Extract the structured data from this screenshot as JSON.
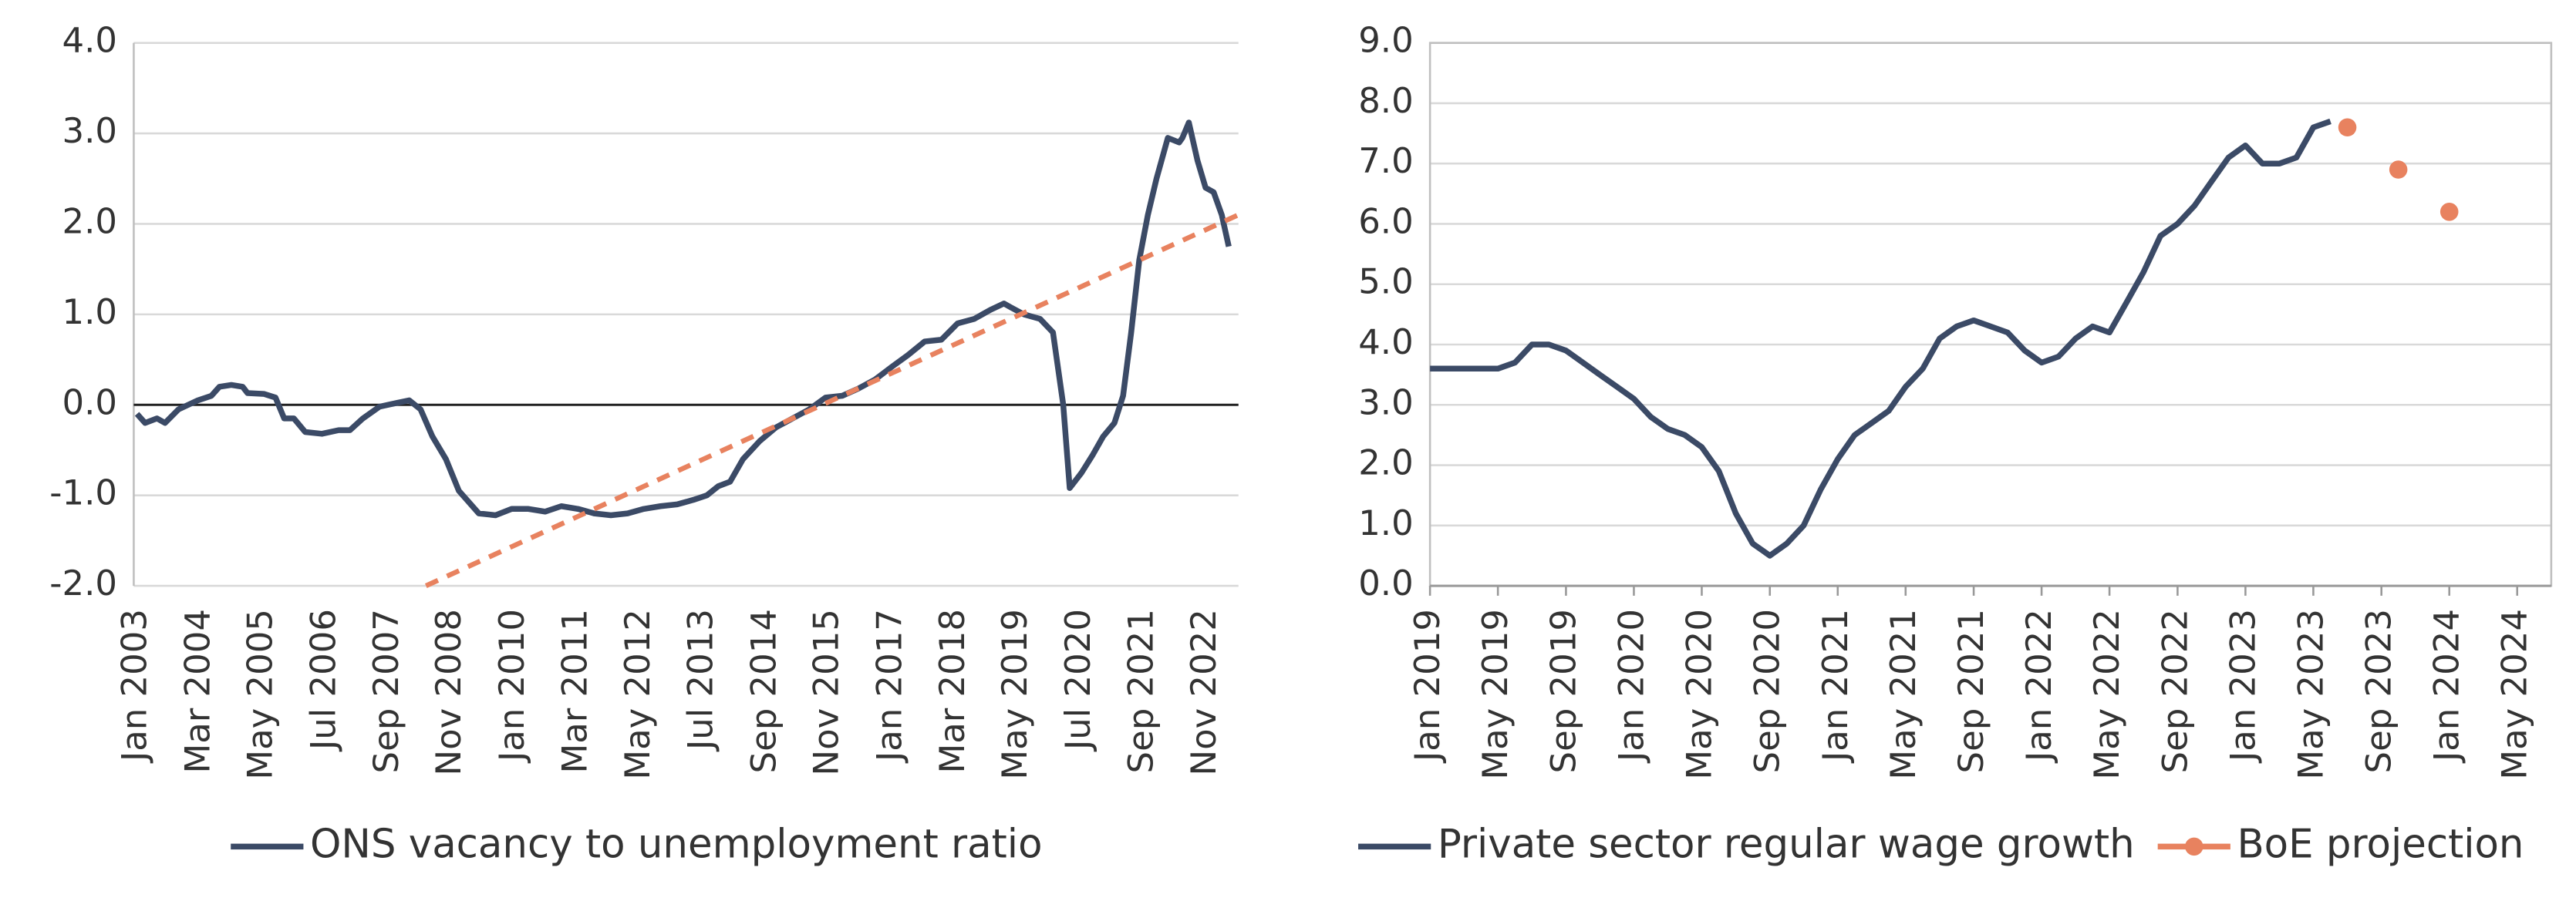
{
  "chart_data": [
    {
      "type": "line",
      "xlim": [
        2002.94,
        2023.43
      ],
      "xticks": [
        {
          "value": 2003,
          "label": "Jan 2003"
        },
        {
          "value": 2004.17,
          "label": "Mar 2004"
        },
        {
          "value": 2005.33,
          "label": "May 2005"
        },
        {
          "value": 2006.5,
          "label": "Jul 2006"
        },
        {
          "value": 2007.67,
          "label": "Sep 2007"
        },
        {
          "value": 2008.83,
          "label": "Nov 2008"
        },
        {
          "value": 2010,
          "label": "Jan 2010"
        },
        {
          "value": 2011.17,
          "label": "Mar 2011"
        },
        {
          "value": 2012.33,
          "label": "May 2012"
        },
        {
          "value": 2013.5,
          "label": "Jul 2013"
        },
        {
          "value": 2014.67,
          "label": "Sep 2014"
        },
        {
          "value": 2015.83,
          "label": "Nov 2015"
        },
        {
          "value": 2017,
          "label": "Jan 2017"
        },
        {
          "value": 2018.17,
          "label": "Mar 2018"
        },
        {
          "value": 2019.33,
          "label": "May 2019"
        },
        {
          "value": 2020.5,
          "label": "Jul 2020"
        },
        {
          "value": 2021.67,
          "label": "Sep 2021"
        },
        {
          "value": 2022.83,
          "label": "Nov 2022"
        }
      ],
      "ylim": [
        -2.0,
        4.0
      ],
      "yticks": [
        {
          "value": -2,
          "label": "-2.0"
        },
        {
          "value": -1,
          "label": "-1.0"
        },
        {
          "value": 0,
          "label": "0.0"
        },
        {
          "value": 1,
          "label": "1.0"
        },
        {
          "value": 2,
          "label": "2.0"
        },
        {
          "value": 3,
          "label": "3.0"
        },
        {
          "value": 4,
          "label": "4.0"
        }
      ],
      "grid": true,
      "zero_line": true,
      "frame": false,
      "series": [
        {
          "name": "ONS vacancy to unemployment ratio",
          "color": "#3b4a66",
          "x": [
            2003.0,
            2003.15,
            2003.37,
            2003.52,
            2003.77,
            2004.13,
            2004.38,
            2004.53,
            2004.75,
            2004.96,
            2005.05,
            2005.36,
            2005.57,
            2005.73,
            2005.91,
            2006.12,
            2006.43,
            2006.74,
            2006.95,
            2007.19,
            2007.5,
            2007.81,
            2008.05,
            2008.26,
            2008.48,
            2008.73,
            2008.97,
            2009.34,
            2009.65,
            2009.95,
            2010.26,
            2010.57,
            2010.87,
            2011.18,
            2011.48,
            2011.79,
            2012.1,
            2012.4,
            2012.71,
            2013.02,
            2013.32,
            2013.57,
            2013.78,
            2014.0,
            2014.24,
            2014.55,
            2014.85,
            2015.16,
            2015.47,
            2015.77,
            2016.08,
            2016.38,
            2016.69,
            2017.0,
            2017.3,
            2017.61,
            2017.92,
            2018.22,
            2018.53,
            2018.83,
            2019.08,
            2019.2,
            2019.45,
            2019.75,
            2019.99,
            2020.18,
            2020.3,
            2020.52,
            2020.73,
            2020.92,
            2021.13,
            2021.29,
            2021.44,
            2021.59,
            2021.75,
            2021.91,
            2022.12,
            2022.33,
            2022.39,
            2022.51,
            2022.67,
            2022.82,
            2022.97,
            2023.12,
            2023.25
          ],
          "values": [
            -0.1,
            -0.2,
            -0.15,
            -0.2,
            -0.05,
            0.05,
            0.1,
            0.2,
            0.22,
            0.2,
            0.13,
            0.12,
            0.08,
            -0.15,
            -0.15,
            -0.3,
            -0.32,
            -0.28,
            -0.28,
            -0.15,
            -0.02,
            0.02,
            0.05,
            -0.05,
            -0.35,
            -0.6,
            -0.95,
            -1.2,
            -1.22,
            -1.15,
            -1.15,
            -1.18,
            -1.12,
            -1.15,
            -1.2,
            -1.22,
            -1.2,
            -1.15,
            -1.12,
            -1.1,
            -1.05,
            -1.0,
            -0.9,
            -0.85,
            -0.6,
            -0.4,
            -0.25,
            -0.15,
            -0.05,
            0.08,
            0.1,
            0.18,
            0.28,
            0.42,
            0.55,
            0.7,
            0.72,
            0.9,
            0.95,
            1.05,
            1.12,
            1.08,
            1.0,
            0.95,
            0.8,
            0.0,
            -0.92,
            -0.75,
            -0.55,
            -0.35,
            -0.2,
            0.1,
            0.8,
            1.6,
            2.1,
            2.5,
            2.95,
            2.9,
            2.95,
            3.12,
            2.7,
            2.4,
            2.35,
            2.1,
            1.75
          ]
        },
        {
          "color": "#e8825f",
          "dash": true,
          "x": [
            2008.36,
            2023.43
          ],
          "values": [
            -2.0,
            2.1
          ]
        }
      ]
    },
    {
      "type": "line",
      "xlim": [
        2019.0,
        2024.5
      ],
      "xticks": [
        {
          "value": 2019,
          "label": "Jan 2019"
        },
        {
          "value": 2019.333,
          "label": "May 2019"
        },
        {
          "value": 2019.667,
          "label": "Sep 2019"
        },
        {
          "value": 2020,
          "label": "Jan 2020"
        },
        {
          "value": 2020.333,
          "label": "May 2020"
        },
        {
          "value": 2020.667,
          "label": "Sep 2020"
        },
        {
          "value": 2021,
          "label": "Jan 2021"
        },
        {
          "value": 2021.333,
          "label": "May 2021"
        },
        {
          "value": 2021.667,
          "label": "Sep 2021"
        },
        {
          "value": 2022,
          "label": "Jan 2022"
        },
        {
          "value": 2022.333,
          "label": "May 2022"
        },
        {
          "value": 2022.667,
          "label": "Sep 2022"
        },
        {
          "value": 2023,
          "label": "Jan 2023"
        },
        {
          "value": 2023.333,
          "label": "May 2023"
        },
        {
          "value": 2023.667,
          "label": "Sep 2023"
        },
        {
          "value": 2024,
          "label": "Jan 2024"
        },
        {
          "value": 2024.333,
          "label": "May 2024"
        }
      ],
      "ylim": [
        0,
        9.0
      ],
      "yticks": [
        {
          "value": 0,
          "label": "0.0"
        },
        {
          "value": 1,
          "label": "1.0"
        },
        {
          "value": 2,
          "label": "2.0"
        },
        {
          "value": 3,
          "label": "3.0"
        },
        {
          "value": 4,
          "label": "4.0"
        },
        {
          "value": 5,
          "label": "5.0"
        },
        {
          "value": 6,
          "label": "6.0"
        },
        {
          "value": 7,
          "label": "7.0"
        },
        {
          "value": 8,
          "label": "8.0"
        },
        {
          "value": 9,
          "label": "9.0"
        }
      ],
      "grid": true,
      "zero_line": false,
      "frame": true,
      "series": [
        {
          "name": "Private sector regular wage growth",
          "color": "#3b4a66",
          "x": [
            2019,
            2019.083,
            2019.167,
            2019.25,
            2019.333,
            2019.417,
            2019.5,
            2019.583,
            2019.667,
            2019.75,
            2019.833,
            2019.917,
            2020,
            2020.083,
            2020.167,
            2020.25,
            2020.333,
            2020.417,
            2020.5,
            2020.583,
            2020.667,
            2020.75,
            2020.833,
            2020.917,
            2021,
            2021.083,
            2021.167,
            2021.25,
            2021.333,
            2021.417,
            2021.5,
            2021.583,
            2021.667,
            2021.75,
            2021.833,
            2021.917,
            2022,
            2022.083,
            2022.167,
            2022.25,
            2022.333,
            2022.417,
            2022.5,
            2022.583,
            2022.667,
            2022.75,
            2022.833,
            2022.917,
            2023,
            2023.083,
            2023.167,
            2023.25,
            2023.333,
            2023.417
          ],
          "values": [
            3.6,
            3.6,
            3.6,
            3.6,
            3.6,
            3.7,
            4.0,
            4.0,
            3.9,
            3.7,
            3.5,
            3.3,
            3.1,
            2.8,
            2.6,
            2.5,
            2.3,
            1.9,
            1.2,
            0.7,
            0.5,
            0.7,
            1.0,
            1.6,
            2.1,
            2.5,
            2.7,
            2.9,
            3.3,
            3.6,
            4.1,
            4.3,
            4.4,
            4.3,
            4.2,
            3.9,
            3.7,
            3.8,
            4.1,
            4.3,
            4.2,
            4.7,
            5.2,
            5.8,
            6.0,
            6.3,
            6.7,
            7.1,
            7.3,
            7.0,
            7.0,
            7.1,
            7.6,
            7.7
          ]
        },
        {
          "name": "BoE projection",
          "color": "#e8825f",
          "markers": true,
          "x": [
            2023.5,
            2023.75,
            2024.0
          ],
          "values": [
            7.6,
            6.9,
            6.2
          ]
        }
      ]
    }
  ]
}
